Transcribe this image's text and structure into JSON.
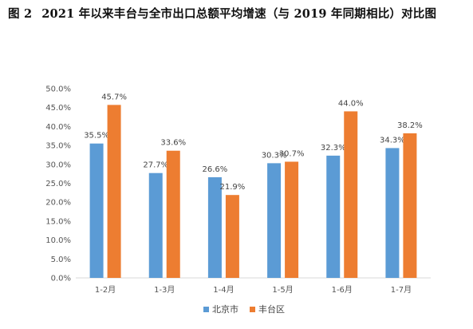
{
  "caption": {
    "figure_no": "图 2",
    "title": "2021 年以来丰台与全市出口总额平均增速（与 2019 年同期相比）对比图"
  },
  "chart_data": {
    "type": "bar",
    "title": "2021 年以来丰台与全市出口总额平均增速（与 2019 年同期相比）对比图",
    "categories": [
      "1-2月",
      "1-3月",
      "1-4月",
      "1-5月",
      "1-6月",
      "1-7月"
    ],
    "series": [
      {
        "name": "北京市",
        "color": "#5B9BD5",
        "values": [
          35.5,
          27.7,
          26.6,
          30.3,
          32.3,
          34.3
        ]
      },
      {
        "name": "丰台区",
        "color": "#ED7D31",
        "values": [
          45.7,
          33.6,
          21.9,
          30.7,
          44.0,
          38.2
        ]
      }
    ],
    "ylim": [
      0,
      50
    ],
    "yticks": [
      "0.0%",
      "5.0%",
      "10.0%",
      "15.0%",
      "20.0%",
      "25.0%",
      "30.0%",
      "35.0%",
      "40.0%",
      "45.0%",
      "50.0%"
    ],
    "data_labels": [
      [
        "35.5%",
        "27.7%",
        "26.6%",
        "30.3%",
        "32.3%",
        "34.3%"
      ],
      [
        "45.7%",
        "33.6%",
        "21.9%",
        "30.7%",
        "44.0%",
        "38.2%"
      ]
    ],
    "grid": false,
    "legend": "bottom"
  }
}
